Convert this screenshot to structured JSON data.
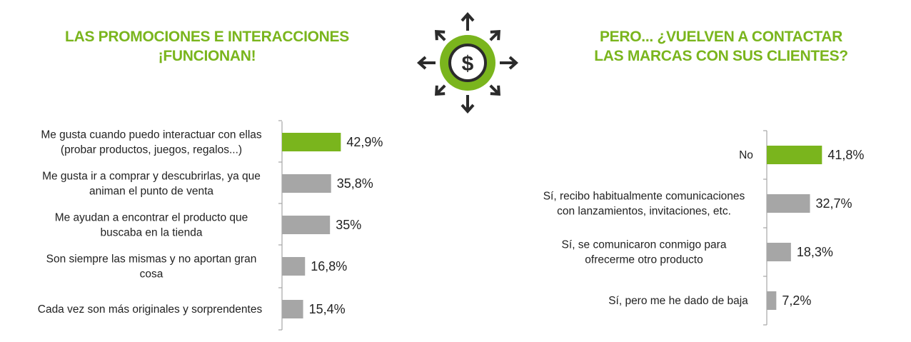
{
  "left": {
    "title_line1": "LAS PROMOCIONES E INTERACCIONES",
    "title_line2": "¡FUNCIONAN!"
  },
  "right": {
    "title_line1": "PERO... ¿VUELVEN A CONTACTAR",
    "title_line2": "LAS MARCAS CON SUS CLIENTES?"
  },
  "icon": {
    "name": "dollar-coin-arrows-icon",
    "symbol": "$"
  },
  "colors": {
    "accent": "#7ab51d",
    "bar_default": "#a6a6a6",
    "axis": "#a6a6a6",
    "icon_dark": "#2b2b2b"
  },
  "chart_data": [
    {
      "type": "bar",
      "orientation": "horizontal",
      "categories": [
        [
          "Me gusta cuando puedo interactuar con ellas",
          "(probar productos, juegos, regalos...)"
        ],
        [
          "Me gusta ir a comprar y descubrirlas, ya que",
          "animan el punto de venta"
        ],
        [
          "Me ayudan a encontrar el producto que",
          "buscaba en la tienda"
        ],
        [
          "Son siempre las mismas y no aportan gran",
          "cosa"
        ],
        [
          "Cada vez son más originales y sorprendentes"
        ]
      ],
      "values": [
        42.9,
        35.8,
        35,
        16.8,
        15.4
      ],
      "value_labels": [
        "42,9%",
        "35,8%",
        "35%",
        "16,8%",
        "15,4%"
      ],
      "highlight_index": 0
    },
    {
      "type": "bar",
      "orientation": "horizontal",
      "categories": [
        [
          "No"
        ],
        [
          "Sí, recibo habitualmente comunicaciones",
          "con lanzamientos, invitaciones, etc."
        ],
        [
          "Sí, se comunicaron conmigo para",
          "ofrecerme otro producto"
        ],
        [
          "Sí, pero me he dado de baja"
        ]
      ],
      "values": [
        41.8,
        32.7,
        18.3,
        7.2
      ],
      "value_labels": [
        "41,8%",
        "32,7%",
        "18,3%",
        "7,2%"
      ],
      "highlight_index": 0
    }
  ]
}
